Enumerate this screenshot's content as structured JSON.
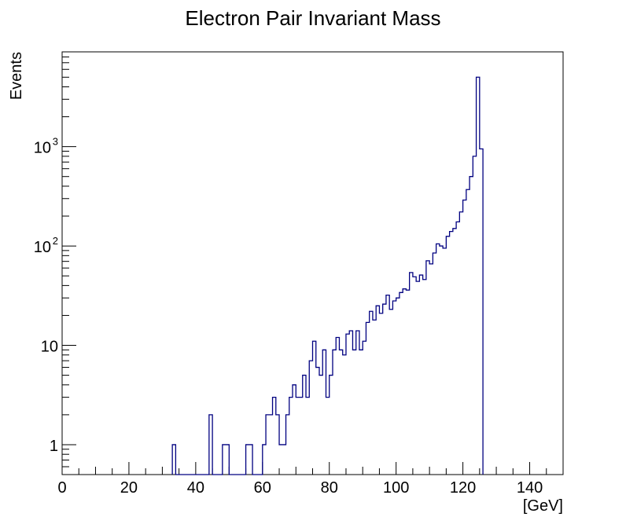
{
  "chart_data": {
    "type": "histogram",
    "title": "Electron Pair Invariant Mass",
    "xlabel": "[GeV]",
    "ylabel": "Events",
    "xlim": [
      0,
      150
    ],
    "ylim": [
      0.5,
      9000
    ],
    "yscale": "log",
    "grid": false,
    "bin_width": 1,
    "x_ticks": [
      0,
      20,
      40,
      60,
      80,
      100,
      120,
      140
    ],
    "x_tick_labels": [
      "0",
      "20",
      "40",
      "60",
      "80",
      "100",
      "120",
      "140"
    ],
    "y_ticks": [
      {
        "value": 1,
        "base": "1",
        "exp": ""
      },
      {
        "value": 10,
        "base": "10",
        "exp": ""
      },
      {
        "value": 100,
        "base": "10",
        "exp": "2"
      },
      {
        "value": 1000,
        "base": "10",
        "exp": "3"
      }
    ],
    "series": [
      {
        "name": "Electron Pair Invariant Mass",
        "color": "#000080",
        "bins": [
          [
            33,
            1
          ],
          [
            44,
            2
          ],
          [
            48,
            1
          ],
          [
            49,
            1
          ],
          [
            55,
            1
          ],
          [
            56,
            1
          ],
          [
            60,
            1
          ],
          [
            61,
            2
          ],
          [
            62,
            2
          ],
          [
            63,
            3
          ],
          [
            64,
            2
          ],
          [
            65,
            1
          ],
          [
            66,
            1
          ],
          [
            67,
            2
          ],
          [
            68,
            3
          ],
          [
            69,
            4
          ],
          [
            70,
            3
          ],
          [
            71,
            3
          ],
          [
            72,
            5
          ],
          [
            73,
            3
          ],
          [
            74,
            7
          ],
          [
            75,
            11
          ],
          [
            76,
            6
          ],
          [
            77,
            5
          ],
          [
            78,
            9
          ],
          [
            79,
            3
          ],
          [
            80,
            5
          ],
          [
            81,
            9
          ],
          [
            82,
            12
          ],
          [
            83,
            9
          ],
          [
            84,
            8
          ],
          [
            85,
            13
          ],
          [
            86,
            14
          ],
          [
            87,
            9
          ],
          [
            88,
            14
          ],
          [
            89,
            9
          ],
          [
            90,
            11
          ],
          [
            91,
            17
          ],
          [
            92,
            22
          ],
          [
            93,
            18
          ],
          [
            94,
            25
          ],
          [
            95,
            21
          ],
          [
            96,
            26
          ],
          [
            97,
            32
          ],
          [
            98,
            23
          ],
          [
            99,
            28
          ],
          [
            100,
            30
          ],
          [
            101,
            34
          ],
          [
            102,
            37
          ],
          [
            103,
            36
          ],
          [
            104,
            54
          ],
          [
            105,
            49
          ],
          [
            106,
            44
          ],
          [
            107,
            51
          ],
          [
            108,
            46
          ],
          [
            109,
            71
          ],
          [
            110,
            66
          ],
          [
            111,
            85
          ],
          [
            112,
            105
          ],
          [
            113,
            100
          ],
          [
            114,
            95
          ],
          [
            115,
            125
          ],
          [
            116,
            140
          ],
          [
            117,
            150
          ],
          [
            118,
            175
          ],
          [
            119,
            220
          ],
          [
            120,
            290
          ],
          [
            121,
            370
          ],
          [
            122,
            500
          ],
          [
            123,
            800
          ],
          [
            124,
            5000
          ],
          [
            125,
            950
          ]
        ]
      }
    ]
  }
}
